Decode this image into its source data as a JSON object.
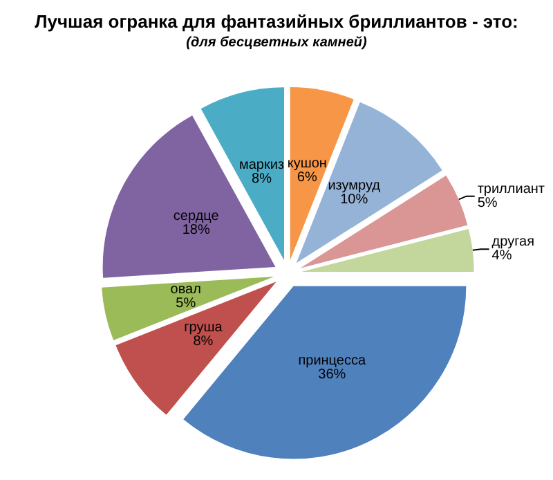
{
  "chart_data": {
    "type": "pie",
    "title": "Лучшая огранка для фантазийных бриллиантов - это:",
    "subtitle": "(для бесцветных камней)",
    "categories": [
      "кушон",
      "изумруд",
      "триллиант",
      "другая",
      "принцесса",
      "груша",
      "овал",
      "сердце",
      "маркиз"
    ],
    "values": [
      6,
      10,
      5,
      4,
      36,
      8,
      5,
      18,
      8
    ],
    "value_labels": [
      "6%",
      "10%",
      "5%",
      "4%",
      "36%",
      "8%",
      "5%",
      "18%",
      "8%"
    ],
    "colors": [
      "#f79646",
      "#95b3d7",
      "#d99694",
      "#c3d69b",
      "#4f81bd",
      "#c0504d",
      "#9bbb59",
      "#8064a2",
      "#4bacc6"
    ],
    "legend": false
  }
}
